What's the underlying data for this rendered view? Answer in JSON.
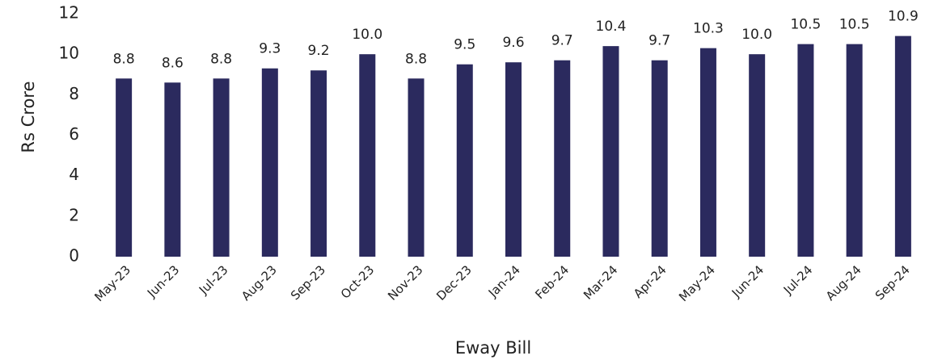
{
  "chart_data": {
    "type": "bar",
    "y_axis_label": "Rs Crore",
    "x_axis_label": "Eway Bill",
    "categories": [
      "May-23",
      "Jun-23",
      "Jul-23",
      "Aug-23",
      "Sep-23",
      "Oct-23",
      "Nov-23",
      "Dec-23",
      "Jan-24",
      "Feb-24",
      "Mar-24",
      "Apr-24",
      "May-24",
      "Jun-24",
      "Jul-24",
      "Aug-24",
      "Sep-24"
    ],
    "values": [
      8.8,
      8.6,
      8.8,
      9.3,
      9.2,
      10.0,
      8.8,
      9.5,
      9.6,
      9.7,
      10.4,
      9.7,
      10.3,
      10.0,
      10.5,
      10.5,
      10.9
    ],
    "value_labels": [
      "8.8",
      "8.6",
      "8.8",
      "9.3",
      "9.2",
      "10.0",
      "8.8",
      "9.5",
      "9.6",
      "9.7",
      "10.4",
      "9.7",
      "10.3",
      "10.0",
      "10.5",
      "10.5",
      "10.9"
    ],
    "color": "#2b2a5e",
    "ylim": [
      0,
      12
    ],
    "yticks": [
      0,
      2,
      4,
      6,
      8,
      10,
      12
    ],
    "grid": false
  }
}
